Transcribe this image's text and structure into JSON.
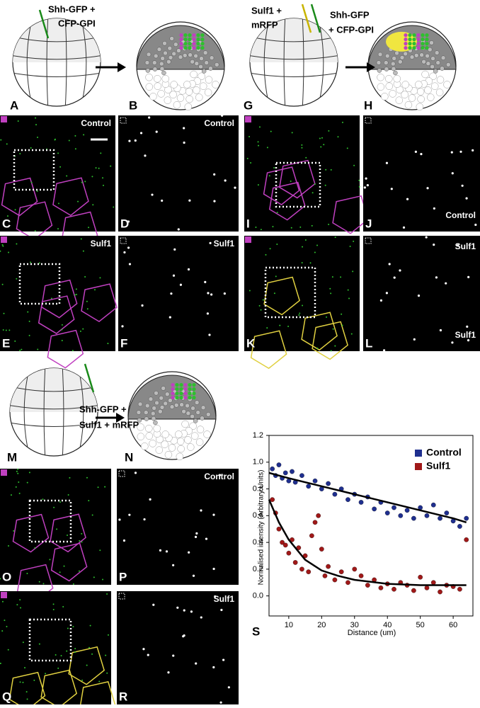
{
  "panels": {
    "A": "A",
    "B": "B",
    "G": "G",
    "H": "H",
    "C": "C",
    "D": "D",
    "I": "I",
    "J": "J",
    "E": "E",
    "F": "F",
    "K": "K",
    "L": "L",
    "M": "M",
    "N": "N",
    "O": "O",
    "P": "P",
    "Q": "Q",
    "R": "R",
    "S": "S"
  },
  "injections": {
    "top_left": [
      "Shh-GFP +",
      "CFP-GPI"
    ],
    "top_right_sulf": [
      "Sulf1 +",
      "mRFP"
    ],
    "top_right_shh": [
      "Shh-GFP",
      "+ CFP-GPI"
    ],
    "middle": [
      "Shh-GFP +",
      "Sulf1 + mRFP"
    ]
  },
  "image_labels": {
    "C": "Control",
    "D": "Control",
    "J": "Control",
    "E": "Sulf1",
    "F": "Sulf1",
    "L_top": "Sulf1",
    "L": "Sulf1",
    "P": "Control",
    "R": "Sulf1"
  },
  "chart_data": {
    "type": "scatter",
    "xlabel": "Distance (um)",
    "ylabel": "Normalised intensity (Arbitrary Units)",
    "xlim": [
      4,
      66
    ],
    "ylim": [
      -0.15,
      1.2
    ],
    "xticks": [
      10,
      20,
      30,
      40,
      50,
      60
    ],
    "yticks": [
      {
        "value": 0,
        "label": "0.0"
      },
      0.2,
      0.4,
      0.6,
      0.8,
      {
        "value": 1,
        "label": "1.0"
      },
      1.2
    ],
    "legend": "upper right",
    "series": [
      {
        "name": "Control",
        "color": "#1f2f8f",
        "x": [
          5,
          6,
          7,
          8,
          9,
          10,
          11,
          12,
          14,
          16,
          18,
          20,
          22,
          24,
          26,
          28,
          30,
          32,
          34,
          36,
          38,
          40,
          42,
          44,
          46,
          48,
          50,
          52,
          54,
          56,
          58,
          60,
          62,
          64
        ],
        "values": [
          0.95,
          0.9,
          0.98,
          0.88,
          0.92,
          0.86,
          0.93,
          0.85,
          0.9,
          0.82,
          0.86,
          0.8,
          0.84,
          0.76,
          0.8,
          0.72,
          0.76,
          0.7,
          0.74,
          0.65,
          0.7,
          0.62,
          0.66,
          0.6,
          0.64,
          0.58,
          0.66,
          0.6,
          0.68,
          0.58,
          0.62,
          0.56,
          0.52,
          0.58
        ]
      },
      {
        "name": "Sulf1",
        "color": "#a01818",
        "x": [
          5,
          6,
          7,
          8,
          9,
          10,
          11,
          12,
          13,
          14,
          15,
          16,
          17,
          18,
          19,
          20,
          21,
          22,
          24,
          26,
          28,
          30,
          32,
          34,
          36,
          38,
          40,
          42,
          44,
          46,
          48,
          50,
          52,
          54,
          56,
          58,
          60,
          62,
          64
        ],
        "values": [
          0.72,
          0.62,
          0.5,
          0.4,
          0.38,
          0.32,
          0.42,
          0.25,
          0.36,
          0.2,
          0.3,
          0.18,
          0.45,
          0.55,
          0.6,
          0.35,
          0.15,
          0.22,
          0.12,
          0.18,
          0.1,
          0.2,
          0.15,
          0.08,
          0.12,
          0.06,
          0.09,
          0.05,
          0.1,
          0.08,
          0.04,
          0.14,
          0.06,
          0.1,
          0.03,
          0.08,
          0.07,
          0.05,
          0.42
        ]
      }
    ],
    "fits": [
      {
        "x": [
          4,
          10,
          20,
          30,
          40,
          50,
          60,
          64
        ],
        "values": [
          0.92,
          0.88,
          0.82,
          0.76,
          0.7,
          0.64,
          0.58,
          0.55
        ]
      },
      {
        "x": [
          4,
          7,
          10,
          15,
          20,
          25,
          30,
          40,
          50,
          64
        ],
        "values": [
          0.72,
          0.55,
          0.42,
          0.27,
          0.19,
          0.15,
          0.12,
          0.09,
          0.08,
          0.08
        ]
      }
    ]
  }
}
